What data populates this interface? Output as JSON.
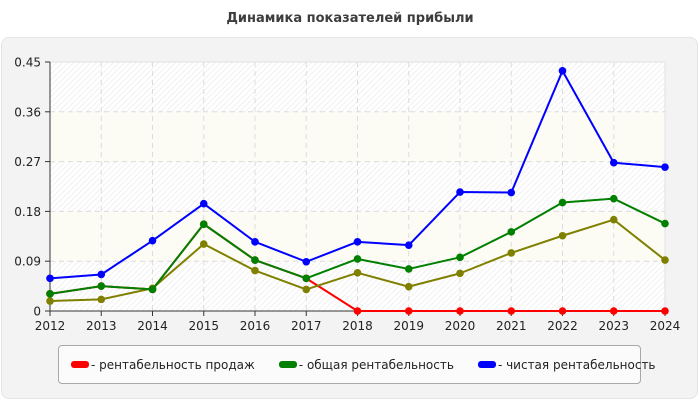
{
  "header": {
    "title": "Динамика показателей прибыли"
  },
  "colors": {
    "sales": "#ff0000",
    "total": "#008000",
    "net": "#0000ff",
    "extra": "#808000",
    "panel_bg": "#f3f3f3",
    "band_plain": "#fcfcf5"
  },
  "legend": {
    "items": [
      {
        "key": "sales",
        "label": "- рентабельность продаж",
        "color": "#ff0000"
      },
      {
        "key": "total",
        "label": "- общая рентабельность",
        "color": "#008000"
      },
      {
        "key": "net",
        "label": "- чистая рентабельность",
        "color": "#0000ff"
      }
    ]
  },
  "chart_data": {
    "type": "line",
    "title": "Динамика показателей прибыли",
    "xlabel": "",
    "ylabel": "",
    "x": [
      "2012",
      "2013",
      "2014",
      "2015",
      "2016",
      "2017",
      "2018",
      "2019",
      "2020",
      "2021",
      "2022",
      "2023",
      "2024"
    ],
    "ylim": [
      0,
      0.45
    ],
    "yticks": [
      "0",
      "0.09",
      "0.18",
      "0.27",
      "0.36",
      "0.45"
    ],
    "grid": true,
    "legend_position": "bottom",
    "series": [
      {
        "name": "рентабельность продаж",
        "color": "#ff0000",
        "values": [
          0.031,
          0.045,
          0.039,
          0.157,
          0.092,
          0.059,
          0,
          0,
          0,
          0,
          0,
          0,
          0
        ]
      },
      {
        "name": "(без подписи)",
        "color": "#808000",
        "values": [
          0.018,
          0.021,
          0.041,
          0.121,
          0.073,
          0.039,
          0.069,
          0.044,
          0.068,
          0.105,
          0.136,
          0.165,
          0.092
        ]
      },
      {
        "name": "общая рентабельность",
        "color": "#008000",
        "values": [
          0.031,
          0.045,
          0.039,
          0.157,
          0.092,
          0.059,
          0.094,
          0.076,
          0.097,
          0.143,
          0.196,
          0.203,
          0.158
        ]
      },
      {
        "name": "чистая рентабельность",
        "color": "#0000ff",
        "values": [
          0.059,
          0.066,
          0.127,
          0.194,
          0.125,
          0.089,
          0.125,
          0.119,
          0.215,
          0.214,
          0.434,
          0.268,
          0.26
        ]
      }
    ]
  }
}
